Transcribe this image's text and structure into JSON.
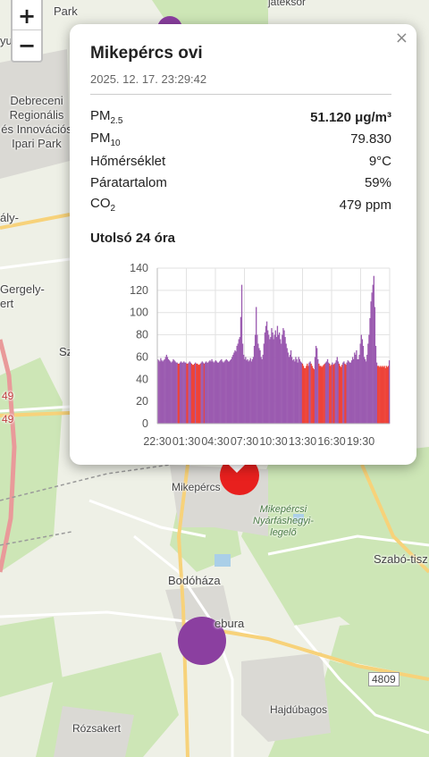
{
  "map": {
    "zoom_in": "+",
    "zoom_out": "−",
    "labels": [
      {
        "id": "park",
        "text": "Park"
      },
      {
        "id": "yukapu",
        "text": "yukapu"
      },
      {
        "id": "debreceni",
        "lines": [
          "Debreceni",
          "Regionális",
          "és Innovációs",
          "Ipari Park"
        ]
      },
      {
        "id": "aly",
        "text": "ály-"
      },
      {
        "id": "gergely",
        "lines": [
          "Gergely-",
          "ert"
        ]
      },
      {
        "id": "sz",
        "text": "Sz"
      },
      {
        "id": "road49a",
        "text": "49"
      },
      {
        "id": "road49b",
        "text": "49"
      },
      {
        "id": "mikepercs",
        "text": "Mikepércs"
      },
      {
        "id": "nyarfas",
        "lines": [
          "Mikepércsi",
          "Nyárfáshegyi-",
          "legelő"
        ]
      },
      {
        "id": "szabo",
        "text": "Szabó-tisz"
      },
      {
        "id": "bodohaza",
        "text": "Bodóháza"
      },
      {
        "id": "ebura",
        "text": "ebura"
      },
      {
        "id": "road4809",
        "text": "4809"
      },
      {
        "id": "hajdubagos",
        "text": "Hajdúbagos"
      },
      {
        "id": "rozsakert",
        "text": "Rózsakert"
      },
      {
        "id": "jateksor",
        "text": "játéksor"
      }
    ],
    "marker_colors": {
      "purple": "#8b3fa0",
      "red": "#e8201e"
    }
  },
  "popup": {
    "close": "×",
    "title": "Mikepércs ovi",
    "timestamp": "2025. 12. 17. 23:29:42",
    "rows": [
      {
        "base": "PM",
        "sub": "2.5",
        "value": "51.120 μg/m³"
      },
      {
        "base": "PM",
        "sub": "10",
        "value": "79.830"
      },
      {
        "base": "Hőmérséklet",
        "sub": "",
        "value": "9°C"
      },
      {
        "base": "Páratartalom",
        "sub": "",
        "value": "59%"
      },
      {
        "base": "CO",
        "sub": "2",
        "value": "479 ppm"
      }
    ],
    "subtitle": "Utolsó 24 óra"
  },
  "chart_data": {
    "type": "bar",
    "title": "",
    "xlabel": "",
    "ylabel": "",
    "ylim": [
      0,
      140
    ],
    "yticks": [
      0,
      20,
      40,
      60,
      80,
      100,
      120,
      140
    ],
    "xtick_labels": [
      "22:30",
      "01:30",
      "04:30",
      "07:30",
      "10:30",
      "13:30",
      "16:30",
      "19:30"
    ],
    "grid": true,
    "colors": {
      "high": "#9b5bb0",
      "low": "#ee4338",
      "threshold": 55
    },
    "values": [
      58,
      57,
      56,
      59,
      57,
      56,
      57,
      58,
      60,
      62,
      60,
      58,
      57,
      56,
      55,
      56,
      58,
      57,
      56,
      55,
      55,
      54,
      54,
      55,
      56,
      55,
      55,
      56,
      55,
      55,
      54,
      54,
      55,
      56,
      55,
      54,
      53,
      53,
      54,
      55,
      54,
      54,
      53,
      53,
      54,
      55,
      56,
      55,
      54,
      55,
      56,
      55,
      55,
      56,
      57,
      56,
      58,
      56,
      55,
      56,
      57,
      56,
      55,
      55,
      56,
      57,
      58,
      56,
      55,
      56,
      57,
      58,
      57,
      56,
      56,
      57,
      58,
      60,
      62,
      64,
      66,
      65,
      70,
      72,
      76,
      78,
      96,
      125,
      72,
      62,
      58,
      60,
      57,
      58,
      56,
      57,
      59,
      56,
      58,
      60,
      70,
      80,
      105,
      80,
      72,
      68,
      66,
      60,
      58,
      62,
      72,
      82,
      88,
      92,
      84,
      80,
      76,
      78,
      86,
      82,
      76,
      80,
      84,
      78,
      88,
      80,
      82,
      76,
      72,
      80,
      86,
      84,
      78,
      72,
      68,
      64,
      60,
      62,
      66,
      60,
      57,
      58,
      56,
      60,
      58,
      55,
      60,
      58,
      56,
      55,
      54,
      52,
      50,
      50,
      52,
      54,
      52,
      55,
      56,
      54,
      52,
      50,
      49,
      60,
      70,
      68,
      58,
      54,
      52,
      52,
      51,
      52,
      53,
      54,
      55,
      56,
      58,
      55,
      54,
      52,
      53,
      55,
      53,
      54,
      55,
      57,
      60,
      56,
      54,
      52,
      51,
      53,
      55,
      56,
      54,
      53,
      55,
      57,
      56,
      55,
      55,
      57,
      60,
      58,
      64,
      62,
      66,
      58,
      58,
      62,
      72,
      80,
      76,
      70,
      60,
      58,
      56,
      62,
      72,
      80,
      95,
      110,
      118,
      125,
      133,
      105,
      70,
      55,
      52,
      52,
      51,
      52,
      51,
      52,
      51,
      52,
      50,
      52,
      51,
      52,
      57
    ]
  }
}
